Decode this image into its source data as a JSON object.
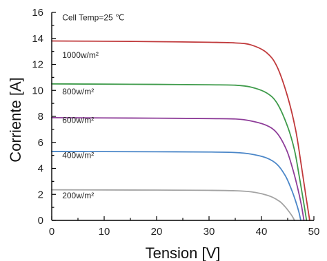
{
  "chart_data": {
    "type": "line",
    "xlabel": "Tension [V]",
    "ylabel": "Corriente [A]",
    "xlim": [
      0,
      50
    ],
    "ylim": [
      0,
      16
    ],
    "x_ticks": [
      0,
      10,
      20,
      30,
      40,
      50
    ],
    "y_ticks": [
      0,
      2,
      4,
      6,
      8,
      10,
      12,
      14,
      16
    ],
    "grid": false,
    "annotations": [
      {
        "text": "Cell Temp=25 ℃",
        "x": 2,
        "y": 15.4
      },
      {
        "text": "1000w/m²",
        "x": 2,
        "y": 12.5
      },
      {
        "text": "800w/m²",
        "x": 2,
        "y": 9.7
      },
      {
        "text": "600w/m²",
        "x": 2,
        "y": 7.5
      },
      {
        "text": "400w/m²",
        "x": 2,
        "y": 4.8
      },
      {
        "text": "200w/m²",
        "x": 2,
        "y": 1.7
      }
    ],
    "series": [
      {
        "name": "1000w/m²",
        "color": "#c0393b",
        "x": [
          0,
          10,
          20,
          30,
          35,
          38,
          41,
          43,
          45,
          46.5,
          47.5,
          48.5,
          49.2
        ],
        "y": [
          13.8,
          13.78,
          13.75,
          13.7,
          13.65,
          13.5,
          12.9,
          11.8,
          9.5,
          7.0,
          4.5,
          1.8,
          0
        ]
      },
      {
        "name": "800w/m²",
        "color": "#3f9b4b",
        "x": [
          0,
          10,
          20,
          30,
          35,
          38,
          41,
          43,
          45,
          46.3,
          47.2,
          48,
          48.6
        ],
        "y": [
          10.5,
          10.48,
          10.46,
          10.43,
          10.4,
          10.25,
          9.8,
          9.0,
          7.2,
          5.4,
          3.4,
          1.5,
          0
        ]
      },
      {
        "name": "600w/m²",
        "color": "#8e3d99",
        "x": [
          0,
          10,
          20,
          30,
          35,
          38,
          41,
          43,
          44.8,
          46,
          46.9,
          47.6,
          48.1
        ],
        "y": [
          7.9,
          7.88,
          7.86,
          7.83,
          7.8,
          7.65,
          7.3,
          6.7,
          5.4,
          3.9,
          2.5,
          1.2,
          0
        ]
      },
      {
        "name": "400w/m²",
        "color": "#4a86c8",
        "x": [
          0,
          10,
          20,
          30,
          35,
          38,
          41,
          43,
          44.6,
          45.7,
          46.5,
          47.1,
          47.5
        ],
        "y": [
          5.3,
          5.29,
          5.28,
          5.26,
          5.22,
          5.1,
          4.8,
          4.3,
          3.4,
          2.4,
          1.5,
          0.7,
          0
        ]
      },
      {
        "name": "200w/m²",
        "color": "#a3a3a3",
        "x": [
          0,
          10,
          20,
          30,
          35,
          38,
          40,
          42,
          43.5,
          44.5,
          45.3,
          45.9,
          46.3
        ],
        "y": [
          2.35,
          2.34,
          2.33,
          2.31,
          2.28,
          2.2,
          2.05,
          1.8,
          1.45,
          1.05,
          0.65,
          0.3,
          0
        ]
      }
    ]
  }
}
